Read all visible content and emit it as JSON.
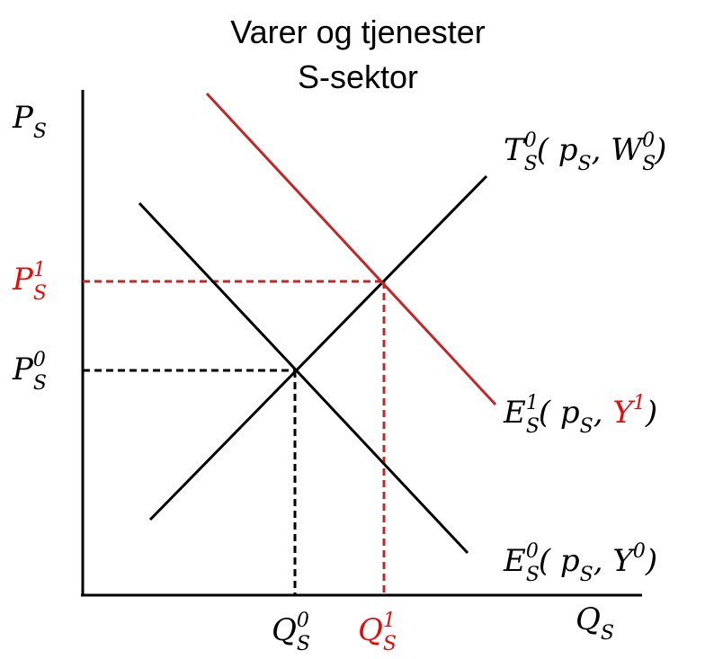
{
  "title": [
    "Varer og tjenester",
    "S-sektor"
  ],
  "axis_labels": {
    "y": [
      {
        "text": "P",
        "pos": "base"
      },
      {
        "text": "S",
        "pos": "sub"
      }
    ],
    "x": [
      {
        "text": "Q",
        "pos": "base"
      },
      {
        "text": "S",
        "pos": "sub"
      }
    ]
  },
  "price_labels": [
    [
      {
        "text": "P",
        "pos": "base",
        "color": "#e01010"
      },
      {
        "text": "S",
        "pos": "sub",
        "color": "#e01010"
      },
      {
        "text": "1",
        "pos": "sup",
        "stack": true,
        "color": "#e01010"
      }
    ],
    [
      {
        "text": "P",
        "pos": "base"
      },
      {
        "text": "S",
        "pos": "sub"
      },
      {
        "text": "0",
        "pos": "sup",
        "stack": true
      }
    ]
  ],
  "quantity_labels": [
    [
      {
        "text": "Q",
        "pos": "base"
      },
      {
        "text": "S",
        "pos": "sub"
      },
      {
        "text": "0",
        "pos": "sup",
        "stack": true
      }
    ],
    [
      {
        "text": "Q",
        "pos": "base",
        "color": "#e01010"
      },
      {
        "text": "S",
        "pos": "sub",
        "color": "#e01010"
      },
      {
        "text": "1",
        "pos": "sup",
        "stack": true,
        "color": "#e01010"
      }
    ]
  ],
  "curve_labels": [
    [
      {
        "text": "T",
        "pos": "base"
      },
      {
        "text": "S",
        "pos": "sub"
      },
      {
        "text": "0",
        "pos": "sup",
        "stack": true
      },
      {
        "text": "( p",
        "pos": "base"
      },
      {
        "text": "S",
        "pos": "sub"
      },
      {
        "text": ", W",
        "pos": "base"
      },
      {
        "text": "S",
        "pos": "sub"
      },
      {
        "text": "0",
        "pos": "sup",
        "stack": true
      },
      {
        "text": ")",
        "pos": "base"
      }
    ],
    [
      {
        "text": "E",
        "pos": "base"
      },
      {
        "text": "S",
        "pos": "sub"
      },
      {
        "text": "1",
        "pos": "sup",
        "stack": true
      },
      {
        "text": "( p",
        "pos": "base"
      },
      {
        "text": "S",
        "pos": "sub"
      },
      {
        "text": ", ",
        "pos": "base"
      },
      {
        "text": "Y",
        "pos": "base",
        "color": "#e01010"
      },
      {
        "text": "1",
        "pos": "sup",
        "color": "#e01010"
      },
      {
        "text": ")",
        "pos": "base"
      }
    ],
    [
      {
        "text": "E",
        "pos": "base"
      },
      {
        "text": "S",
        "pos": "sub"
      },
      {
        "text": "0",
        "pos": "sup",
        "stack": true
      },
      {
        "text": "( p",
        "pos": "base"
      },
      {
        "text": "S",
        "pos": "sub"
      },
      {
        "text": ", Y",
        "pos": "base"
      },
      {
        "text": "0",
        "pos": "sup"
      },
      {
        "text": ")",
        "pos": "base"
      }
    ]
  ]
}
